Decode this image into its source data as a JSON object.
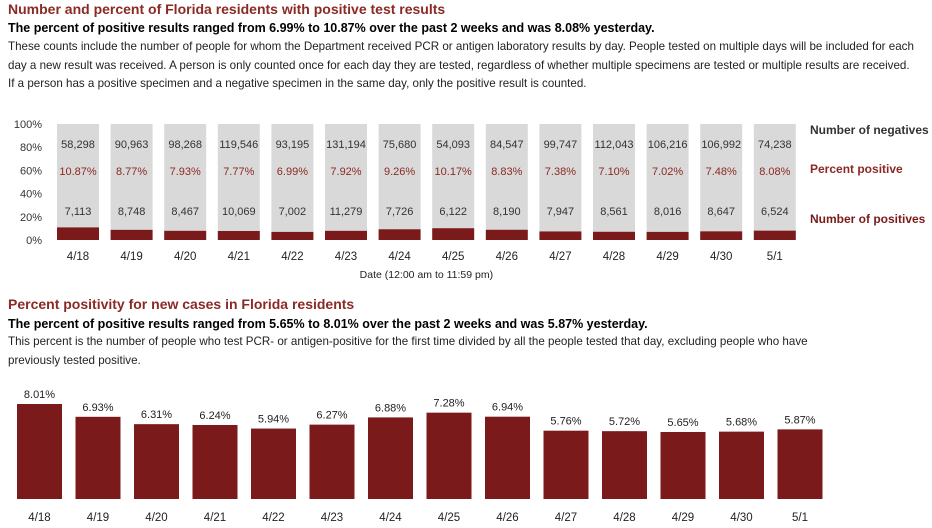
{
  "section1": {
    "title": "Number and percent of Florida residents with positive test results",
    "subtitle": "The percent of positive results ranged from 6.99% to 10.87% over the past 2 weeks and was 8.08% yesterday.",
    "description": "These counts include the number of people for whom the Department received PCR or antigen laboratory results by day. People tested on multiple days will be included for each day a new result was received. A person is only counted once for each day they are tested, regardless of whether multiple specimens are tested or multiple results are received. If a person has a positive specimen and a negative specimen in the same day, only the positive result is counted."
  },
  "section2": {
    "title": "Percent positivity for new cases in Florida residents",
    "subtitle": "The percent of positive results ranged from 5.65% to 8.01% over the past 2 weeks and was 5.87% yesterday.",
    "description": "This percent is the number of people who test PCR- or antigen-positive for the first time divided by all the people tested that day, excluding people who have previously tested positive."
  },
  "colors": {
    "title": "#8b2a25",
    "positive_bar": "#7b1a1a",
    "negative_bar": "#d9d9d9"
  },
  "chart_data": [
    {
      "type": "bar",
      "stacked": true,
      "categories": [
        "4/18",
        "4/19",
        "4/20",
        "4/21",
        "4/22",
        "4/23",
        "4/24",
        "4/25",
        "4/26",
        "4/27",
        "4/28",
        "4/29",
        "4/30",
        "5/1"
      ],
      "yticks": [
        "0%",
        "20%",
        "40%",
        "60%",
        "80%",
        "100%"
      ],
      "ylim": [
        0,
        100
      ],
      "xlabel": "Date (12:00 am to 11:59 pm)",
      "series": [
        {
          "name": "Number of negatives",
          "values": [
            58298,
            90963,
            98268,
            119546,
            93195,
            131194,
            75680,
            54093,
            84547,
            99747,
            112043,
            106216,
            106992,
            74238
          ]
        },
        {
          "name": "Percent positive",
          "values": [
            "10.87%",
            "8.77%",
            "7.93%",
            "7.77%",
            "6.99%",
            "7.92%",
            "9.26%",
            "10.17%",
            "8.83%",
            "7.38%",
            "7.10%",
            "7.02%",
            "7.48%",
            "8.08%"
          ]
        },
        {
          "name": "Number of positives",
          "values": [
            7113,
            8748,
            8467,
            10069,
            7002,
            11279,
            7726,
            6122,
            8190,
            7947,
            8561,
            8016,
            8647,
            6524
          ]
        }
      ],
      "legend": [
        "Number of negatives",
        "Percent positive",
        "Number of positives"
      ],
      "legend_position": "right"
    },
    {
      "type": "bar",
      "categories": [
        "4/18",
        "4/19",
        "4/20",
        "4/21",
        "4/22",
        "4/23",
        "4/24",
        "4/25",
        "4/26",
        "4/27",
        "4/28",
        "4/29",
        "4/30",
        "5/1"
      ],
      "values": [
        8.01,
        6.93,
        6.31,
        6.24,
        5.94,
        6.27,
        6.88,
        7.28,
        6.94,
        5.76,
        5.72,
        5.65,
        5.68,
        5.87
      ],
      "labels": [
        "8.01%",
        "6.93%",
        "6.31%",
        "6.24%",
        "5.94%",
        "6.27%",
        "6.88%",
        "7.28%",
        "6.94%",
        "5.76%",
        "5.72%",
        "5.65%",
        "5.68%",
        "5.87%"
      ]
    }
  ]
}
